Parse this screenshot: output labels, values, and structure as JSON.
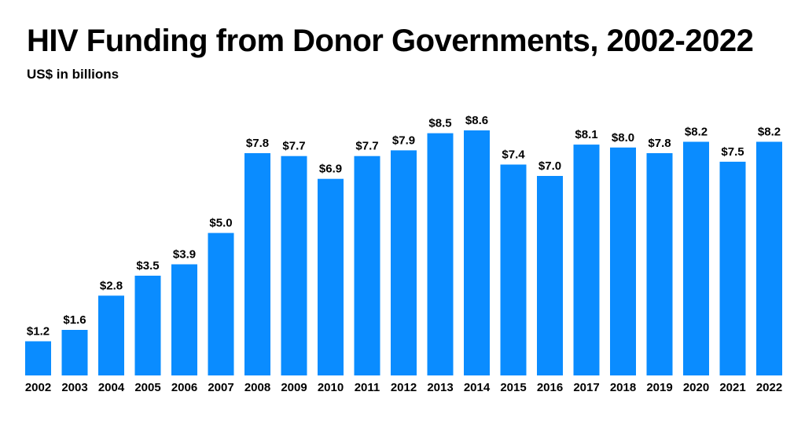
{
  "chart_data": {
    "type": "bar",
    "title": "HIV Funding from Donor Governments, 2002-2022",
    "subtitle": "US$ in billions",
    "xlabel": "",
    "ylabel": "",
    "categories": [
      "2002",
      "2003",
      "2004",
      "2005",
      "2006",
      "2007",
      "2008",
      "2009",
      "2010",
      "2011",
      "2012",
      "2013",
      "2014",
      "2015",
      "2016",
      "2017",
      "2018",
      "2019",
      "2020",
      "2021",
      "2022"
    ],
    "values": [
      1.2,
      1.6,
      2.8,
      3.5,
      3.9,
      5.0,
      7.8,
      7.7,
      6.9,
      7.7,
      7.9,
      8.5,
      8.6,
      7.4,
      7.0,
      8.1,
      8.0,
      7.8,
      8.2,
      7.5,
      8.2
    ],
    "data_labels": [
      "$1.2",
      "$1.6",
      "$2.8",
      "$3.5",
      "$3.9",
      "$5.0",
      "$7.8",
      "$7.7",
      "$6.9",
      "$7.7",
      "$7.9",
      "$8.5",
      "$8.6",
      "$7.4",
      "$7.0",
      "$8.1",
      "$8.0",
      "$7.8",
      "$8.2",
      "$7.5",
      "$8.2"
    ],
    "ylim": [
      0,
      8.6
    ],
    "grid": false,
    "legend": "none",
    "bar_color": "#0a8cff"
  }
}
